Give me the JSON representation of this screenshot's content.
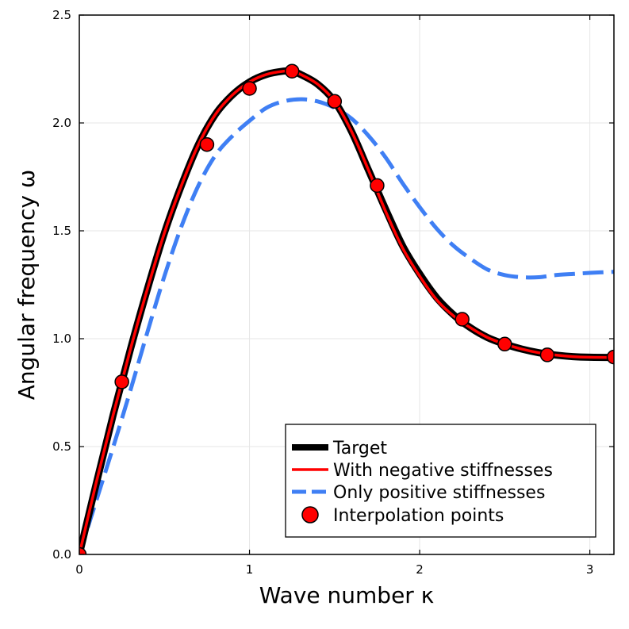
{
  "chart_data": {
    "type": "line",
    "xlabel": "Wave number  κ",
    "ylabel": "Angular frequency ω",
    "xlim": [
      0,
      3.1416
    ],
    "ylim": [
      0,
      2.5
    ],
    "xticks": [
      0,
      1,
      2,
      3
    ],
    "xtick_labels": [
      "0",
      "1",
      "2",
      "3"
    ],
    "yticks": [
      0,
      0.5,
      1.0,
      1.5,
      2.0,
      2.5
    ],
    "ytick_labels": [
      "0.0",
      "0.5",
      "1.0",
      "1.5",
      "2.0",
      "2.5"
    ],
    "grid": true,
    "legend_position": "bottom-right",
    "colors": {
      "target": "#000000",
      "negative": "#ff0000",
      "positive": "#3f7ff4",
      "points_fill": "#ff0000",
      "points_edge": "#000000"
    },
    "series": [
      {
        "name": "Target",
        "style": "solid-thick",
        "x": [
          0,
          0.1,
          0.2,
          0.3,
          0.4,
          0.5,
          0.6,
          0.7,
          0.8,
          0.9,
          1.0,
          1.1,
          1.2,
          1.25,
          1.3,
          1.4,
          1.5,
          1.6,
          1.7,
          1.8,
          1.9,
          2.0,
          2.1,
          2.2,
          2.3,
          2.4,
          2.5,
          2.6,
          2.7,
          2.8,
          2.9,
          3.0,
          3.1416
        ],
        "y": [
          0,
          0.33,
          0.65,
          0.95,
          1.23,
          1.49,
          1.71,
          1.9,
          2.04,
          2.13,
          2.19,
          2.225,
          2.24,
          2.24,
          2.225,
          2.18,
          2.1,
          1.96,
          1.78,
          1.6,
          1.43,
          1.3,
          1.19,
          1.11,
          1.05,
          1.005,
          0.975,
          0.952,
          0.935,
          0.924,
          0.917,
          0.914,
          0.913
        ]
      },
      {
        "name": "With negative stiffnesses",
        "style": "solid",
        "x": [
          0,
          0.1,
          0.2,
          0.3,
          0.4,
          0.5,
          0.6,
          0.7,
          0.8,
          0.9,
          1.0,
          1.1,
          1.2,
          1.25,
          1.3,
          1.4,
          1.5,
          1.6,
          1.7,
          1.8,
          1.9,
          2.0,
          2.1,
          2.2,
          2.3,
          2.4,
          2.5,
          2.6,
          2.7,
          2.8,
          2.9,
          3.0,
          3.1416
        ],
        "y": [
          0,
          0.335,
          0.65,
          0.95,
          1.23,
          1.49,
          1.71,
          1.9,
          2.04,
          2.13,
          2.19,
          2.225,
          2.24,
          2.24,
          2.225,
          2.18,
          2.1,
          1.96,
          1.78,
          1.59,
          1.42,
          1.29,
          1.18,
          1.105,
          1.05,
          1.005,
          0.975,
          0.952,
          0.935,
          0.924,
          0.917,
          0.914,
          0.913
        ]
      },
      {
        "name": "Only positive stiffnesses",
        "style": "dashed",
        "x": [
          0,
          0.1,
          0.2,
          0.3,
          0.4,
          0.5,
          0.6,
          0.7,
          0.8,
          0.9,
          1.0,
          1.1,
          1.2,
          1.3,
          1.4,
          1.5,
          1.6,
          1.7,
          1.8,
          1.9,
          2.0,
          2.1,
          2.2,
          2.3,
          2.4,
          2.5,
          2.6,
          2.7,
          2.8,
          2.9,
          3.0,
          3.1416
        ],
        "y": [
          0,
          0.25,
          0.5,
          0.76,
          1.03,
          1.29,
          1.52,
          1.71,
          1.85,
          1.94,
          2.01,
          2.07,
          2.1,
          2.11,
          2.1,
          2.07,
          2.02,
          1.94,
          1.84,
          1.72,
          1.61,
          1.51,
          1.43,
          1.37,
          1.32,
          1.295,
          1.285,
          1.285,
          1.295,
          1.3,
          1.305,
          1.31
        ]
      },
      {
        "name": "Interpolation points",
        "style": "markers",
        "x": [
          0,
          0.25,
          0.75,
          1.0,
          1.25,
          1.5,
          1.75,
          2.25,
          2.5,
          2.75,
          3.1416
        ],
        "y": [
          0,
          0.8,
          1.9,
          2.16,
          2.24,
          2.1,
          1.71,
          1.09,
          0.975,
          0.925,
          0.915
        ]
      }
    ]
  }
}
